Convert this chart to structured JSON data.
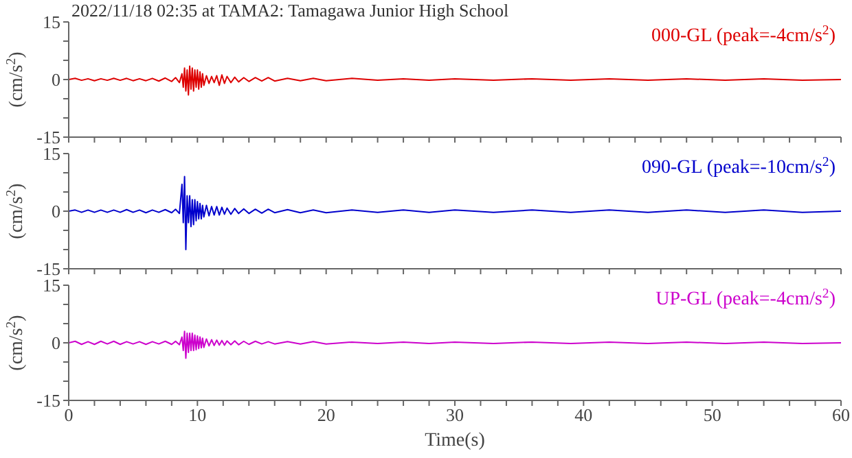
{
  "chart_data": [
    {
      "type": "line",
      "title": "2022/11/18 02:35 at TAMA2: Tamagawa Junior High School",
      "ylabel": "(cm/s$^{2}$)",
      "tick_labels": "y",
      "x": [
        0,
        0.5,
        1,
        1.5,
        2,
        2.5,
        3,
        3.5,
        4,
        4.5,
        5,
        5.5,
        6,
        6.5,
        7,
        7.5,
        8,
        8.3,
        8.6,
        8.8,
        8.9,
        9.0,
        9.1,
        9.2,
        9.3,
        9.4,
        9.5,
        9.6,
        9.7,
        9.8,
        9.9,
        10.0,
        10.1,
        10.2,
        10.3,
        10.4,
        10.5,
        10.7,
        10.9,
        11.1,
        11.3,
        11.5,
        11.7,
        11.9,
        12.1,
        12.3,
        12.6,
        12.9,
        13.2,
        13.6,
        14,
        14.5,
        15,
        15.5,
        16,
        17,
        18,
        19,
        20,
        22,
        24,
        26,
        28,
        30,
        33,
        36,
        39,
        42,
        45,
        48,
        51,
        54,
        57,
        60
      ],
      "series": [
        {
          "name": "000-GL (peak=-4cm/s$^{2}$)",
          "color": "#dd0000",
          "values": [
            0,
            0.3,
            -0.2,
            0.2,
            -0.3,
            0.2,
            -0.2,
            0.3,
            -0.2,
            0.3,
            -0.3,
            0.2,
            -0.3,
            0.3,
            -0.4,
            0.4,
            -0.5,
            0.5,
            -0.8,
            1.5,
            -2,
            3,
            -3,
            2.5,
            -4,
            3.5,
            -2.5,
            3,
            -3,
            2.5,
            -2,
            2.5,
            -2.5,
            2,
            -2,
            1.5,
            -1.5,
            1,
            -1,
            0.8,
            -0.8,
            1,
            -1.5,
            1.2,
            -1,
            0.8,
            -0.8,
            0.6,
            -0.6,
            0.5,
            -0.5,
            0.5,
            -0.4,
            0.5,
            -0.4,
            0.3,
            -0.3,
            0.3,
            -0.3,
            0.3,
            -0.2,
            0.2,
            -0.2,
            0.2,
            -0.2,
            0.2,
            -0.2,
            0.2,
            -0.2,
            0.2,
            -0.2,
            0.2,
            -0.2,
            0
          ]
        }
      ],
      "xlim": [
        0,
        60
      ],
      "xticks": [
        0,
        {
          "value": 2,
          "label": null
        },
        {
          "value": 4,
          "label": null
        },
        {
          "value": 6,
          "label": null
        },
        {
          "value": 8,
          "label": null
        },
        10,
        {
          "value": 12,
          "label": null
        },
        {
          "value": 14,
          "label": null
        },
        {
          "value": 16,
          "label": null
        },
        {
          "value": 18,
          "label": null
        },
        20,
        {
          "value": 22,
          "label": null
        },
        {
          "value": 24,
          "label": null
        },
        {
          "value": 26,
          "label": null
        },
        {
          "value": 28,
          "label": null
        },
        30,
        {
          "value": 32,
          "label": null
        },
        {
          "value": 34,
          "label": null
        },
        {
          "value": 36,
          "label": null
        },
        {
          "value": 38,
          "label": null
        },
        40,
        {
          "value": 42,
          "label": null
        },
        {
          "value": 44,
          "label": null
        },
        {
          "value": 46,
          "label": null
        },
        {
          "value": 48,
          "label": null
        },
        50,
        {
          "value": 52,
          "label": null
        },
        {
          "value": 54,
          "label": null
        },
        {
          "value": 56,
          "label": null
        },
        {
          "value": 58,
          "label": null
        },
        60
      ],
      "ylim": [
        -15,
        15
      ],
      "yticks": [
        -15,
        {
          "value": -10,
          "label": null
        },
        {
          "value": -5,
          "label": null
        },
        0,
        {
          "value": 5,
          "label": null
        },
        {
          "value": 10,
          "label": null
        },
        15
      ]
    },
    {
      "type": "line",
      "ylabel": "(cm/s$^{2}$)",
      "tick_labels": "y",
      "x": [
        0,
        0.5,
        1,
        1.5,
        2,
        2.5,
        3,
        3.5,
        4,
        4.5,
        5,
        5.5,
        6,
        6.5,
        7,
        7.5,
        8,
        8.3,
        8.6,
        8.8,
        8.9,
        9.0,
        9.1,
        9.2,
        9.3,
        9.4,
        9.5,
        9.6,
        9.7,
        9.8,
        9.9,
        10.0,
        10.1,
        10.2,
        10.3,
        10.4,
        10.5,
        10.7,
        10.9,
        11.1,
        11.3,
        11.5,
        11.7,
        11.9,
        12.1,
        12.3,
        12.6,
        12.9,
        13.2,
        13.6,
        14,
        14.5,
        15,
        15.5,
        16,
        17,
        18,
        19,
        20,
        22,
        24,
        26,
        28,
        30,
        33,
        36,
        39,
        42,
        45,
        48,
        51,
        54,
        57,
        60
      ],
      "series": [
        {
          "name": "090-GL (peak=-10cm/s$^{2}$)",
          "color": "#0000cc",
          "values": [
            0,
            0.3,
            -0.3,
            0.3,
            -0.3,
            0.3,
            -0.3,
            0.3,
            -0.3,
            0.4,
            -0.3,
            0.3,
            -0.4,
            0.3,
            -0.3,
            0.4,
            -0.4,
            0.5,
            -0.6,
            7,
            -3,
            9,
            -10,
            4,
            -3,
            4,
            -4,
            3,
            -3.5,
            3,
            -2.5,
            2.5,
            -2,
            2,
            -2,
            1.5,
            -1.5,
            1.5,
            -1.2,
            1.2,
            -1,
            1.2,
            -1,
            1,
            -0.8,
            0.8,
            -0.8,
            0.7,
            -0.6,
            0.6,
            -0.6,
            0.5,
            -0.5,
            0.5,
            -0.4,
            0.4,
            -0.4,
            0.3,
            -0.4,
            0.3,
            -0.3,
            0.3,
            -0.3,
            0.3,
            -0.3,
            0.3,
            -0.3,
            0.3,
            -0.3,
            0.3,
            -0.3,
            0.3,
            -0.3,
            0
          ]
        }
      ],
      "xlim": [
        0,
        60
      ],
      "xticks": [
        0,
        {
          "value": 2,
          "label": null
        },
        {
          "value": 4,
          "label": null
        },
        {
          "value": 6,
          "label": null
        },
        {
          "value": 8,
          "label": null
        },
        10,
        {
          "value": 12,
          "label": null
        },
        {
          "value": 14,
          "label": null
        },
        {
          "value": 16,
          "label": null
        },
        {
          "value": 18,
          "label": null
        },
        20,
        {
          "value": 22,
          "label": null
        },
        {
          "value": 24,
          "label": null
        },
        {
          "value": 26,
          "label": null
        },
        {
          "value": 28,
          "label": null
        },
        30,
        {
          "value": 32,
          "label": null
        },
        {
          "value": 34,
          "label": null
        },
        {
          "value": 36,
          "label": null
        },
        {
          "value": 38,
          "label": null
        },
        40,
        {
          "value": 42,
          "label": null
        },
        {
          "value": 44,
          "label": null
        },
        {
          "value": 46,
          "label": null
        },
        {
          "value": 48,
          "label": null
        },
        50,
        {
          "value": 52,
          "label": null
        },
        {
          "value": 54,
          "label": null
        },
        {
          "value": 56,
          "label": null
        },
        {
          "value": 58,
          "label": null
        },
        60
      ],
      "ylim": [
        -15,
        15
      ],
      "yticks": [
        -15,
        {
          "value": -10,
          "label": null
        },
        {
          "value": -5,
          "label": null
        },
        0,
        {
          "value": 5,
          "label": null
        },
        {
          "value": 10,
          "label": null
        },
        15
      ]
    },
    {
      "type": "line",
      "ylabel": "(cm/s$^{2}$)",
      "xlabel": "Time(s)",
      "x": [
        0,
        0.5,
        1,
        1.5,
        2,
        2.5,
        3,
        3.5,
        4,
        4.5,
        5,
        5.5,
        6,
        6.5,
        7,
        7.5,
        8,
        8.3,
        8.6,
        8.8,
        8.9,
        9.0,
        9.1,
        9.2,
        9.3,
        9.4,
        9.5,
        9.6,
        9.7,
        9.8,
        9.9,
        10.0,
        10.1,
        10.2,
        10.3,
        10.4,
        10.5,
        10.7,
        10.9,
        11.1,
        11.3,
        11.5,
        11.7,
        11.9,
        12.1,
        12.3,
        12.6,
        12.9,
        13.2,
        13.6,
        14,
        14.5,
        15,
        15.5,
        16,
        17,
        18,
        19,
        20,
        22,
        24,
        26,
        28,
        30,
        33,
        36,
        39,
        42,
        45,
        48,
        51,
        54,
        57,
        60
      ],
      "series": [
        {
          "name": "UP-GL (peak=-4cm/s$^{2}$)",
          "color": "#cc00cc",
          "values": [
            0,
            0.4,
            -0.4,
            0.3,
            -0.4,
            0.4,
            -0.3,
            0.4,
            -0.4,
            0.3,
            -0.3,
            0.3,
            -0.4,
            0.3,
            -0.3,
            0.4,
            -0.4,
            0.4,
            -0.5,
            1.5,
            -2,
            3,
            -4,
            2.5,
            -2.5,
            2.5,
            -2,
            2.5,
            -2,
            2,
            -1.8,
            1.8,
            -1.5,
            1.5,
            -1.3,
            1.2,
            -1.2,
            1,
            -0.8,
            0.8,
            -0.7,
            0.7,
            -0.6,
            0.6,
            -0.6,
            0.5,
            -0.5,
            0.5,
            -0.5,
            0.4,
            -0.4,
            0.4,
            -0.3,
            0.3,
            -0.3,
            0.3,
            -0.3,
            0.3,
            -0.3,
            0.2,
            -0.2,
            0.2,
            -0.2,
            0.2,
            -0.2,
            0.2,
            -0.2,
            0.2,
            -0.2,
            0.2,
            -0.2,
            0.2,
            -0.2,
            0
          ]
        }
      ],
      "xlim": [
        0,
        60
      ],
      "xticks": [
        0,
        {
          "value": 2,
          "label": null
        },
        {
          "value": 4,
          "label": null
        },
        {
          "value": 6,
          "label": null
        },
        {
          "value": 8,
          "label": null
        },
        10,
        {
          "value": 12,
          "label": null
        },
        {
          "value": 14,
          "label": null
        },
        {
          "value": 16,
          "label": null
        },
        {
          "value": 18,
          "label": null
        },
        20,
        {
          "value": 22,
          "label": null
        },
        {
          "value": 24,
          "label": null
        },
        {
          "value": 26,
          "label": null
        },
        {
          "value": 28,
          "label": null
        },
        30,
        {
          "value": 32,
          "label": null
        },
        {
          "value": 34,
          "label": null
        },
        {
          "value": 36,
          "label": null
        },
        {
          "value": 38,
          "label": null
        },
        40,
        {
          "value": 42,
          "label": null
        },
        {
          "value": 44,
          "label": null
        },
        {
          "value": 46,
          "label": null
        },
        {
          "value": 48,
          "label": null
        },
        50,
        {
          "value": 52,
          "label": null
        },
        {
          "value": 54,
          "label": null
        },
        {
          "value": 56,
          "label": null
        },
        {
          "value": 58,
          "label": null
        },
        60
      ],
      "ylim": [
        -15,
        15
      ],
      "yticks": [
        -15,
        {
          "value": -10,
          "label": null
        },
        {
          "value": -5,
          "label": null
        },
        0,
        {
          "value": 5,
          "label": null
        },
        {
          "value": 10,
          "label": null
        },
        15
      ]
    }
  ]
}
